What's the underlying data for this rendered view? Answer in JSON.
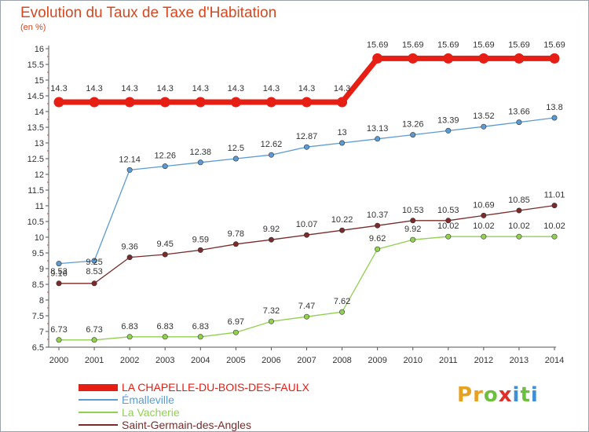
{
  "chart_data": {
    "type": "line",
    "title": "Evolution du Taux de Taxe d'Habitation",
    "subtitle": "(en %)",
    "x": [
      "2000",
      "2001",
      "2002",
      "2003",
      "2004",
      "2005",
      "2006",
      "2007",
      "2008",
      "2009",
      "2010",
      "2011",
      "2012",
      "2013",
      "2014"
    ],
    "ylim": [
      6.5,
      16
    ],
    "yticks": [
      "6.5",
      "7",
      "7.5",
      "8",
      "8.5",
      "9",
      "9.5",
      "10",
      "10.5",
      "11",
      "11.5",
      "12",
      "12.5",
      "13",
      "13.5",
      "14",
      "14.5",
      "15",
      "15.5",
      "16"
    ],
    "grid": false,
    "legend_position": "bottom-left",
    "series": [
      {
        "name": "LA CHAPELLE-DU-BOIS-DES-FAULX",
        "color": "#e61e14",
        "values": [
          14.3,
          14.3,
          14.3,
          14.3,
          14.3,
          14.3,
          14.3,
          14.3,
          14.3,
          15.69,
          15.69,
          15.69,
          15.69,
          15.69,
          15.69
        ],
        "labels": [
          "14.3",
          "14.3",
          "14.3",
          "14.3",
          "14.3",
          "14.3",
          "14.3",
          "14.3",
          "14.3",
          "15.69",
          "15.69",
          "15.69",
          "15.69",
          "15.69",
          "15.69"
        ]
      },
      {
        "name": "Émalleville",
        "color": "#5b9bd5",
        "values": [
          9.16,
          9.25,
          12.14,
          12.26,
          12.38,
          12.5,
          12.62,
          12.87,
          13,
          13.13,
          13.26,
          13.39,
          13.52,
          13.66,
          13.8
        ],
        "labels": [
          "9.16",
          "9.25",
          "12.14",
          "12.26",
          "12.38",
          "12.5",
          "12.62",
          "12.87",
          "13",
          "13.13",
          "13.26",
          "13.39",
          "13.52",
          "13.66",
          "13.8"
        ]
      },
      {
        "name": "La Vacherie",
        "color": "#92d050",
        "values": [
          6.73,
          6.73,
          6.83,
          6.83,
          6.83,
          6.97,
          7.32,
          7.47,
          7.62,
          9.62,
          9.92,
          10.02,
          10.02,
          10.02,
          10.02
        ],
        "labels": [
          "6.73",
          "6.73",
          "6.83",
          "6.83",
          "6.83",
          "6.97",
          "7.32",
          "7.47",
          "7.62",
          "9.62",
          "9.92",
          "10.02",
          "10.02",
          "10.02",
          "10.02"
        ]
      },
      {
        "name": "Saint-Germain-des-Angles",
        "color": "#7b2b2b",
        "values": [
          8.53,
          8.53,
          9.36,
          9.45,
          9.59,
          9.78,
          9.92,
          10.07,
          10.22,
          10.37,
          10.53,
          10.53,
          10.69,
          10.85,
          11.01
        ],
        "labels": [
          "8.53",
          "8.53",
          "9.36",
          "9.45",
          "9.59",
          "9.78",
          "9.92",
          "10.07",
          "10.22",
          "10.37",
          "10.53",
          "10.53",
          "10.69",
          "10.85",
          "11.01"
        ]
      }
    ]
  },
  "logo": {
    "letters": [
      "P",
      "r",
      "o",
      "x",
      "i",
      "t",
      "i"
    ],
    "colors": [
      "#e8a020",
      "#e8a020",
      "#6fbf3f",
      "#e0302a",
      "#3f8fd8",
      "#6fbf3f",
      "#3f8fd8"
    ]
  }
}
